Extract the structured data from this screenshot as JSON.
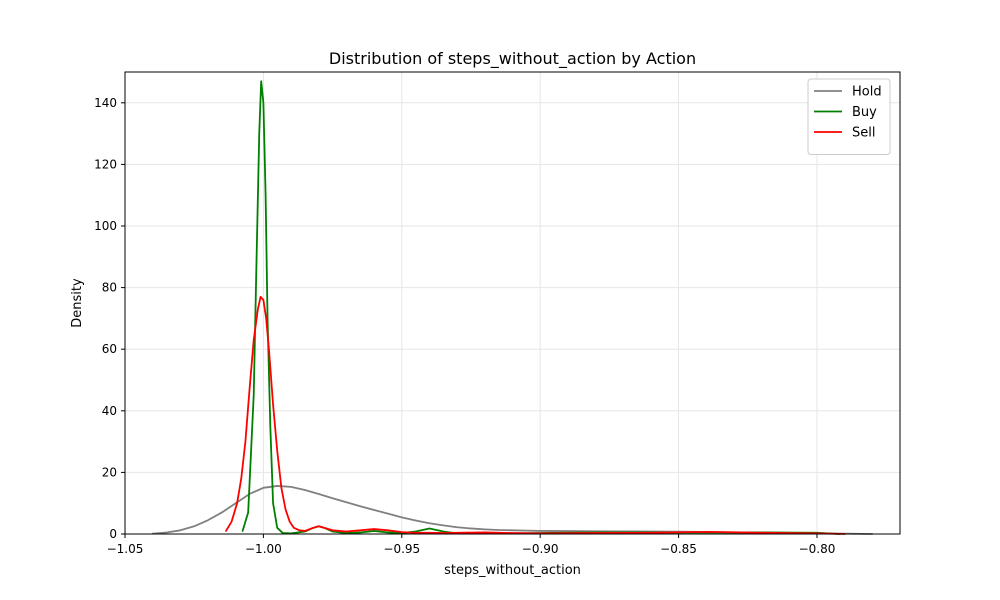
{
  "chart_data": {
    "type": "line",
    "title": "Distribution of steps_without_action by Action",
    "xlabel": "steps_without_action",
    "ylabel": "Density",
    "xlim": [
      -1.05,
      -0.77
    ],
    "ylim": [
      0,
      150
    ],
    "xticks": [
      -1.05,
      -1.0,
      -0.95,
      -0.9,
      -0.85,
      -0.8
    ],
    "xtick_labels": [
      "−1.05",
      "−1.00",
      "−0.95",
      "−0.90",
      "−0.85",
      "−0.80"
    ],
    "yticks": [
      0,
      20,
      40,
      60,
      80,
      100,
      120,
      140
    ],
    "ytick_labels": [
      "0",
      "20",
      "40",
      "60",
      "80",
      "100",
      "120",
      "140"
    ],
    "grid": true,
    "legend_position": "top-right",
    "series": [
      {
        "name": "Hold",
        "color": "#808080",
        "x": [
          -1.04,
          -1.035,
          -1.03,
          -1.025,
          -1.02,
          -1.015,
          -1.01,
          -1.005,
          -1.0,
          -0.995,
          -0.99,
          -0.985,
          -0.98,
          -0.975,
          -0.97,
          -0.965,
          -0.96,
          -0.955,
          -0.95,
          -0.945,
          -0.94,
          -0.935,
          -0.93,
          -0.925,
          -0.92,
          -0.915,
          -0.91,
          -0.905,
          -0.9,
          -0.89,
          -0.88,
          -0.87,
          -0.86,
          -0.85,
          -0.84,
          -0.83,
          -0.82,
          -0.81,
          -0.8,
          -0.79,
          -0.78
        ],
        "values": [
          0.1,
          0.5,
          1.2,
          2.5,
          4.5,
          7.0,
          10.0,
          13.0,
          15.0,
          15.6,
          15.3,
          14.3,
          13.0,
          11.6,
          10.3,
          9.0,
          7.8,
          6.6,
          5.4,
          4.4,
          3.5,
          2.8,
          2.2,
          1.8,
          1.5,
          1.3,
          1.2,
          1.1,
          1.0,
          0.95,
          0.9,
          0.85,
          0.8,
          0.75,
          0.65,
          0.55,
          0.45,
          0.35,
          0.25,
          0.12,
          0.0
        ]
      },
      {
        "name": "Buy",
        "color": "#008000",
        "x": [
          -1.0075,
          -1.0055,
          -1.0035,
          -1.0025,
          -1.0015,
          -1.0008,
          -1.0,
          -0.9992,
          -0.9985,
          -0.9975,
          -0.9965,
          -0.995,
          -0.993,
          -0.99,
          -0.985,
          -0.982,
          -0.98,
          -0.978,
          -0.975,
          -0.97,
          -0.965,
          -0.96,
          -0.955,
          -0.95,
          -0.945,
          -0.94,
          -0.935,
          -0.93,
          -0.92,
          -0.91,
          -0.9,
          -0.88,
          -0.86,
          -0.84,
          -0.82,
          -0.8,
          -0.792
        ],
        "values": [
          1.0,
          7.0,
          45.0,
          88.0,
          130.0,
          147.0,
          140.0,
          110.0,
          70.0,
          35.0,
          10.0,
          2.0,
          0.3,
          0.2,
          0.8,
          2.0,
          2.5,
          2.0,
          0.8,
          0.3,
          0.5,
          1.0,
          0.5,
          0.3,
          0.8,
          1.8,
          0.8,
          0.2,
          0.3,
          0.2,
          0.3,
          0.5,
          0.5,
          0.5,
          0.5,
          0.4,
          0.0
        ]
      },
      {
        "name": "Sell",
        "color": "#ff0000",
        "x": [
          -1.0135,
          -1.0115,
          -1.0095,
          -1.008,
          -1.0065,
          -1.005,
          -1.0035,
          -1.002,
          -1.001,
          -1.0,
          -0.999,
          -0.998,
          -0.9965,
          -0.995,
          -0.9935,
          -0.992,
          -0.9905,
          -0.989,
          -0.987,
          -0.985,
          -0.982,
          -0.98,
          -0.978,
          -0.975,
          -0.97,
          -0.965,
          -0.96,
          -0.955,
          -0.95,
          -0.945,
          -0.94,
          -0.935,
          -0.93,
          -0.92,
          -0.91,
          -0.9,
          -0.88,
          -0.86,
          -0.84,
          -0.82,
          -0.8,
          -0.79
        ],
        "values": [
          1.0,
          4.0,
          10.0,
          18.0,
          30.0,
          47.0,
          63.0,
          73.0,
          77.0,
          76.0,
          70.0,
          60.0,
          42.0,
          27.0,
          15.0,
          8.0,
          4.0,
          2.0,
          1.2,
          1.0,
          2.0,
          2.5,
          2.0,
          1.2,
          0.8,
          1.2,
          1.6,
          1.2,
          0.6,
          0.4,
          0.4,
          0.3,
          0.4,
          0.5,
          0.3,
          0.2,
          0.3,
          0.4,
          0.7,
          0.4,
          0.2,
          0.0
        ]
      }
    ]
  }
}
